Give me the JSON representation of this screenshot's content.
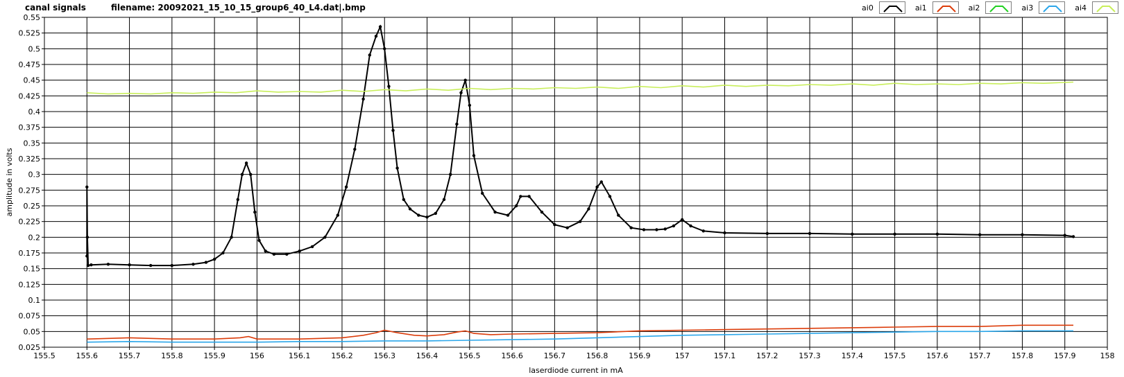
{
  "header": {
    "title": "canal signals",
    "subtitle": "filename: 20092021_15_10_15_group6_40_L4.dat|.bmp"
  },
  "legend": [
    {
      "label": "ai0",
      "color": "#000000"
    },
    {
      "label": "ai1",
      "color": "#dc3c0a"
    },
    {
      "label": "ai2",
      "color": "#22d022"
    },
    {
      "label": "ai3",
      "color": "#2aa6ea"
    },
    {
      "label": "ai4",
      "color": "#c8ee5a"
    }
  ],
  "chart_data": {
    "type": "line",
    "xlabel": "laserdiode current in mA",
    "ylabel": "amplitude in volts",
    "xlim": [
      155.5,
      158
    ],
    "ylim": [
      0.025,
      0.55
    ],
    "grid": true,
    "legend_position": "top-right",
    "x_ticks": [
      "155.5",
      "155.6",
      "155.7",
      "155.8",
      "155.9",
      "156",
      "156.1",
      "156.2",
      "156.3",
      "156.4",
      "156.5",
      "156.6",
      "156.7",
      "156.8",
      "156.9",
      "157",
      "157.1",
      "157.2",
      "157.3",
      "157.4",
      "157.5",
      "157.6",
      "157.7",
      "157.8",
      "157.9",
      "158"
    ],
    "y_ticks": [
      "0.025",
      "0.05",
      "0.075",
      "0.1",
      "0.125",
      "0.15",
      "0.175",
      "0.2",
      "0.225",
      "0.25",
      "0.275",
      "0.3",
      "0.325",
      "0.35",
      "0.375",
      "0.4",
      "0.425",
      "0.45",
      "0.475",
      "0.5",
      "0.525",
      "0.55"
    ],
    "series": [
      {
        "name": "ai0",
        "color": "#000000",
        "markers": true,
        "x": [
          155.6,
          155.6,
          155.601,
          155.603,
          155.61,
          155.65,
          155.7,
          155.75,
          155.8,
          155.85,
          155.88,
          155.9,
          155.92,
          155.94,
          155.955,
          155.965,
          155.975,
          155.985,
          155.995,
          156.005,
          156.02,
          156.04,
          156.07,
          156.1,
          156.13,
          156.16,
          156.19,
          156.21,
          156.23,
          156.25,
          156.265,
          156.28,
          156.29,
          156.3,
          156.31,
          156.32,
          156.33,
          156.345,
          156.36,
          156.38,
          156.4,
          156.42,
          156.44,
          156.455,
          156.47,
          156.48,
          156.49,
          156.5,
          156.51,
          156.53,
          156.56,
          156.59,
          156.61,
          156.62,
          156.64,
          156.67,
          156.7,
          156.73,
          156.76,
          156.78,
          156.8,
          156.81,
          156.83,
          156.85,
          156.88,
          156.91,
          156.94,
          156.96,
          156.98,
          157.0,
          157.02,
          157.05,
          157.1,
          157.2,
          157.3,
          157.4,
          157.5,
          157.6,
          157.7,
          157.8,
          157.9,
          157.92
        ],
        "y": [
          0.17,
          0.28,
          0.2,
          0.155,
          0.156,
          0.157,
          0.156,
          0.155,
          0.155,
          0.157,
          0.16,
          0.165,
          0.175,
          0.2,
          0.26,
          0.3,
          0.318,
          0.3,
          0.24,
          0.195,
          0.178,
          0.173,
          0.173,
          0.178,
          0.185,
          0.2,
          0.235,
          0.28,
          0.34,
          0.42,
          0.49,
          0.52,
          0.535,
          0.5,
          0.44,
          0.37,
          0.31,
          0.26,
          0.245,
          0.235,
          0.232,
          0.238,
          0.26,
          0.3,
          0.38,
          0.43,
          0.45,
          0.41,
          0.33,
          0.27,
          0.24,
          0.235,
          0.25,
          0.265,
          0.265,
          0.24,
          0.22,
          0.215,
          0.225,
          0.245,
          0.28,
          0.288,
          0.265,
          0.235,
          0.215,
          0.212,
          0.212,
          0.213,
          0.218,
          0.228,
          0.218,
          0.21,
          0.207,
          0.206,
          0.206,
          0.205,
          0.205,
          0.205,
          0.204,
          0.204,
          0.203,
          0.201
        ]
      },
      {
        "name": "ai1",
        "color": "#dc3c0a",
        "markers": false,
        "x": [
          155.6,
          155.7,
          155.8,
          155.9,
          155.96,
          155.98,
          156.0,
          156.1,
          156.2,
          156.25,
          156.28,
          156.3,
          156.33,
          156.37,
          156.4,
          156.44,
          156.47,
          156.49,
          156.51,
          156.55,
          156.6,
          156.7,
          156.8,
          156.9,
          157.0,
          157.1,
          157.2,
          157.3,
          157.4,
          157.5,
          157.6,
          157.7,
          157.8,
          157.92
        ],
        "y": [
          0.038,
          0.04,
          0.038,
          0.038,
          0.04,
          0.042,
          0.038,
          0.038,
          0.04,
          0.044,
          0.048,
          0.052,
          0.048,
          0.044,
          0.043,
          0.045,
          0.049,
          0.051,
          0.047,
          0.045,
          0.046,
          0.047,
          0.048,
          0.051,
          0.052,
          0.053,
          0.054,
          0.055,
          0.056,
          0.057,
          0.058,
          0.058,
          0.06,
          0.06
        ]
      },
      {
        "name": "ai3",
        "color": "#2aa6ea",
        "markers": false,
        "x": [
          155.6,
          155.7,
          155.8,
          155.9,
          156.0,
          156.1,
          156.2,
          156.3,
          156.4,
          156.5,
          156.6,
          156.7,
          156.8,
          156.9,
          157.0,
          157.1,
          157.2,
          157.3,
          157.4,
          157.5,
          157.6,
          157.7,
          157.8,
          157.92
        ],
        "y": [
          0.033,
          0.034,
          0.033,
          0.033,
          0.033,
          0.034,
          0.034,
          0.035,
          0.035,
          0.036,
          0.037,
          0.038,
          0.04,
          0.042,
          0.044,
          0.045,
          0.046,
          0.047,
          0.048,
          0.049,
          0.05,
          0.05,
          0.051,
          0.051
        ]
      },
      {
        "name": "ai4",
        "color": "#c8ee5a",
        "markers": false,
        "x": [
          155.6,
          155.65,
          155.7,
          155.75,
          155.8,
          155.85,
          155.9,
          155.95,
          156.0,
          156.05,
          156.1,
          156.15,
          156.2,
          156.25,
          156.3,
          156.35,
          156.4,
          156.45,
          156.5,
          156.55,
          156.6,
          156.65,
          156.7,
          156.75,
          156.8,
          156.85,
          156.9,
          156.95,
          157.0,
          157.05,
          157.1,
          157.15,
          157.2,
          157.25,
          157.3,
          157.35,
          157.4,
          157.45,
          157.5,
          157.55,
          157.6,
          157.65,
          157.7,
          157.75,
          157.8,
          157.85,
          157.92
        ],
        "y": [
          0.43,
          0.428,
          0.429,
          0.428,
          0.43,
          0.429,
          0.431,
          0.43,
          0.433,
          0.431,
          0.432,
          0.431,
          0.434,
          0.432,
          0.435,
          0.433,
          0.436,
          0.434,
          0.437,
          0.435,
          0.437,
          0.436,
          0.438,
          0.437,
          0.439,
          0.437,
          0.44,
          0.438,
          0.441,
          0.439,
          0.442,
          0.44,
          0.442,
          0.441,
          0.443,
          0.442,
          0.444,
          0.442,
          0.445,
          0.443,
          0.444,
          0.443,
          0.445,
          0.444,
          0.446,
          0.445,
          0.447
        ]
      }
    ]
  }
}
